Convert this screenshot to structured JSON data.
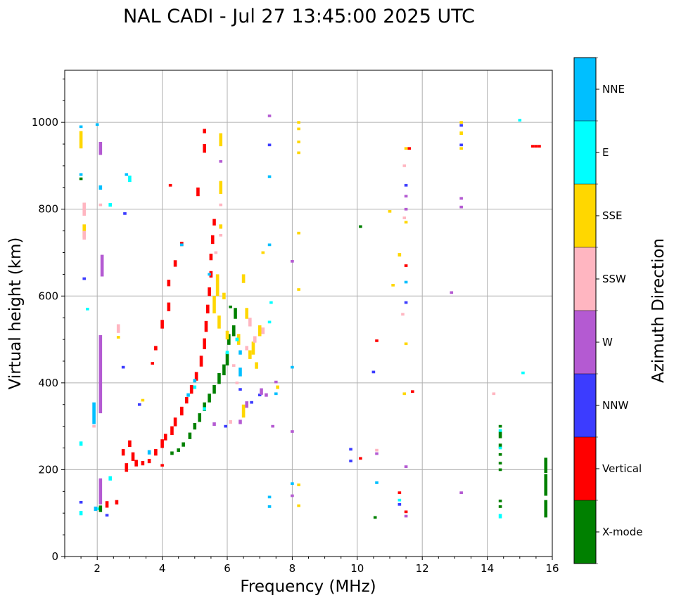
{
  "chart_data": {
    "type": "scatter",
    "title": "NAL CADI - Jul 27 13:45:00 2025 UTC",
    "xlabel": "Frequency (MHz)",
    "ylabel": "Virtual height (km)",
    "xlim": [
      1,
      16
    ],
    "ylim": [
      0,
      1120
    ],
    "xticks": [
      2,
      4,
      6,
      8,
      10,
      12,
      14,
      16
    ],
    "yticks": [
      0,
      200,
      400,
      600,
      800,
      1000
    ],
    "grid": true,
    "colorbar": {
      "label": "Azimuth Direction",
      "categories": [
        "X-mode",
        "Vertical",
        "NNW",
        "W",
        "SSW",
        "SSE",
        "E",
        "NNE"
      ],
      "colors": [
        "#008000",
        "#ff0000",
        "#3c3cff",
        "#b45ad2",
        "#ffb6c1",
        "#ffd700",
        "#00ffff",
        "#00bfff"
      ]
    },
    "points_format": "[frequency_MHz, height_km, category_index, height_span_km]",
    "points": [
      [
        3.1,
        230,
        1,
        20
      ],
      [
        3.2,
        215,
        1,
        15
      ],
      [
        3.4,
        215,
        1,
        10
      ],
      [
        3.6,
        220,
        1,
        10
      ],
      [
        3.8,
        240,
        1,
        15
      ],
      [
        4.0,
        260,
        1,
        20
      ],
      [
        4.1,
        275,
        1,
        15
      ],
      [
        4.3,
        290,
        1,
        20
      ],
      [
        4.4,
        310,
        1,
        20
      ],
      [
        4.6,
        335,
        1,
        20
      ],
      [
        4.75,
        360,
        1,
        15
      ],
      [
        4.9,
        385,
        1,
        20
      ],
      [
        5.05,
        415,
        1,
        20
      ],
      [
        5.2,
        450,
        1,
        25
      ],
      [
        5.3,
        490,
        1,
        25
      ],
      [
        5.35,
        530,
        1,
        25
      ],
      [
        5.4,
        570,
        1,
        20
      ],
      [
        5.45,
        610,
        1,
        20
      ],
      [
        5.5,
        650,
        1,
        15
      ],
      [
        5.5,
        690,
        1,
        15
      ],
      [
        5.55,
        730,
        1,
        20
      ],
      [
        5.6,
        770,
        1,
        15
      ],
      [
        5.3,
        940,
        1,
        20
      ],
      [
        5.3,
        980,
        1,
        10
      ],
      [
        5.1,
        840,
        1,
        20
      ],
      [
        4.6,
        720,
        1,
        10
      ],
      [
        4.4,
        675,
        1,
        15
      ],
      [
        4.2,
        630,
        1,
        15
      ],
      [
        4.2,
        575,
        1,
        20
      ],
      [
        4.0,
        535,
        1,
        20
      ],
      [
        3.8,
        480,
        1,
        10
      ],
      [
        3.7,
        445,
        1,
        6
      ],
      [
        4.25,
        855,
        1,
        6
      ],
      [
        2.8,
        240,
        1,
        15
      ],
      [
        2.9,
        205,
        1,
        20
      ],
      [
        3.0,
        260,
        1,
        15
      ],
      [
        2.3,
        120,
        1,
        15
      ],
      [
        2.6,
        125,
        1,
        10
      ],
      [
        4.0,
        210,
        1,
        6
      ],
      [
        10.1,
        226,
        1,
        6
      ],
      [
        10.6,
        497,
        1,
        6
      ],
      [
        11.6,
        940,
        1,
        6
      ],
      [
        11.3,
        147,
        1,
        6
      ],
      [
        11.5,
        103,
        1,
        6
      ],
      [
        11.5,
        670,
        1,
        6
      ],
      [
        11.7,
        380,
        1,
        6
      ],
      [
        15.4,
        945,
        1,
        6
      ],
      [
        15.5,
        945,
        1,
        6
      ],
      [
        15.6,
        945,
        1,
        6
      ],
      [
        4.3,
        238,
        0,
        8
      ],
      [
        4.5,
        245,
        0,
        8
      ],
      [
        4.65,
        258,
        0,
        10
      ],
      [
        4.85,
        278,
        0,
        15
      ],
      [
        5.0,
        300,
        0,
        15
      ],
      [
        5.15,
        320,
        0,
        20
      ],
      [
        5.3,
        345,
        0,
        20
      ],
      [
        5.45,
        365,
        0,
        20
      ],
      [
        5.6,
        385,
        0,
        20
      ],
      [
        5.75,
        410,
        0,
        25
      ],
      [
        5.9,
        430,
        0,
        25
      ],
      [
        6.0,
        455,
        0,
        30
      ],
      [
        6.05,
        500,
        0,
        25
      ],
      [
        6.2,
        520,
        0,
        25
      ],
      [
        6.25,
        560,
        0,
        25
      ],
      [
        6.1,
        575,
        0,
        6
      ],
      [
        14.4,
        300,
        0,
        6
      ],
      [
        14.4,
        280,
        0,
        15
      ],
      [
        14.4,
        255,
        0,
        10
      ],
      [
        14.4,
        235,
        0,
        6
      ],
      [
        14.4,
        215,
        0,
        6
      ],
      [
        14.4,
        200,
        0,
        6
      ],
      [
        14.4,
        128,
        0,
        6
      ],
      [
        14.4,
        115,
        0,
        6
      ],
      [
        15.8,
        210,
        0,
        35
      ],
      [
        15.8,
        165,
        0,
        50
      ],
      [
        15.8,
        110,
        0,
        40
      ],
      [
        10.1,
        760,
        0,
        6
      ],
      [
        10.55,
        90,
        0,
        6
      ],
      [
        1.5,
        870,
        0,
        6
      ],
      [
        2.1,
        110,
        0,
        15
      ],
      [
        5.7,
        625,
        5,
        50
      ],
      [
        5.6,
        580,
        5,
        40
      ],
      [
        5.75,
        540,
        5,
        30
      ],
      [
        5.9,
        600,
        5,
        15
      ],
      [
        6.0,
        510,
        5,
        20
      ],
      [
        6.35,
        500,
        5,
        25
      ],
      [
        6.5,
        640,
        5,
        20
      ],
      [
        6.6,
        560,
        5,
        25
      ],
      [
        6.8,
        480,
        5,
        30
      ],
      [
        7.0,
        520,
        5,
        25
      ],
      [
        6.5,
        335,
        5,
        30
      ],
      [
        6.7,
        465,
        5,
        20
      ],
      [
        6.9,
        440,
        5,
        15
      ],
      [
        5.8,
        960,
        5,
        30
      ],
      [
        5.8,
        850,
        5,
        30
      ],
      [
        5.8,
        760,
        5,
        10
      ],
      [
        8.2,
        1000,
        5,
        6
      ],
      [
        8.2,
        985,
        5,
        6
      ],
      [
        8.2,
        955,
        5,
        6
      ],
      [
        8.2,
        930,
        5,
        6
      ],
      [
        8.2,
        745,
        5,
        6
      ],
      [
        8.2,
        615,
        5,
        6
      ],
      [
        8.2,
        165,
        5,
        6
      ],
      [
        8.2,
        117,
        5,
        6
      ],
      [
        11.3,
        695,
        5,
        8
      ],
      [
        11.5,
        940,
        5,
        6
      ],
      [
        11.5,
        770,
        5,
        6
      ],
      [
        13.2,
        1000,
        5,
        6
      ],
      [
        13.2,
        975,
        5,
        8
      ],
      [
        13.2,
        940,
        5,
        6
      ],
      [
        1.5,
        960,
        5,
        40
      ],
      [
        1.6,
        750,
        5,
        30
      ],
      [
        11.1,
        625,
        5,
        6
      ],
      [
        11.5,
        490,
        5,
        6
      ],
      [
        11.45,
        375,
        5,
        6
      ],
      [
        7.55,
        390,
        5,
        8
      ],
      [
        3.4,
        360,
        5,
        6
      ],
      [
        2.65,
        505,
        5,
        6
      ],
      [
        11.0,
        795,
        5,
        6
      ],
      [
        7.1,
        700,
        5,
        6
      ],
      [
        1.5,
        100,
        6,
        10
      ],
      [
        2.0,
        110,
        6,
        6
      ],
      [
        2.4,
        180,
        6,
        10
      ],
      [
        3.0,
        870,
        6,
        15
      ],
      [
        2.4,
        810,
        6,
        8
      ],
      [
        5.0,
        390,
        6,
        8
      ],
      [
        5.3,
        340,
        6,
        8
      ],
      [
        7.3,
        540,
        6,
        6
      ],
      [
        7.35,
        585,
        6,
        6
      ],
      [
        14.4,
        93,
        6,
        10
      ],
      [
        14.4,
        250,
        6,
        6
      ],
      [
        14.4,
        290,
        6,
        6
      ],
      [
        15.0,
        1005,
        6,
        6
      ],
      [
        15.1,
        423,
        6,
        6
      ],
      [
        11.3,
        130,
        6,
        6
      ],
      [
        1.5,
        260,
        6,
        10
      ],
      [
        1.7,
        570,
        6,
        6
      ],
      [
        6.3,
        500,
        6,
        8
      ],
      [
        6.0,
        470,
        6,
        8
      ],
      [
        1.5,
        990,
        7,
        6
      ],
      [
        1.5,
        880,
        7,
        6
      ],
      [
        2.0,
        995,
        7,
        6
      ],
      [
        2.1,
        850,
        7,
        10
      ],
      [
        1.9,
        330,
        7,
        50
      ],
      [
        2.9,
        880,
        7,
        6
      ],
      [
        4.8,
        372,
        7,
        8
      ],
      [
        5.0,
        405,
        7,
        8
      ],
      [
        6.4,
        425,
        7,
        20
      ],
      [
        6.4,
        470,
        7,
        10
      ],
      [
        7.3,
        875,
        7,
        6
      ],
      [
        7.3,
        718,
        7,
        6
      ],
      [
        8.0,
        436,
        7,
        6
      ],
      [
        8.0,
        168,
        7,
        6
      ],
      [
        10.6,
        170,
        7,
        6
      ],
      [
        11.5,
        632,
        7,
        6
      ],
      [
        7.3,
        115,
        7,
        6
      ],
      [
        7.3,
        137,
        7,
        6
      ],
      [
        1.95,
        110,
        7,
        10
      ],
      [
        4.6,
        718,
        7,
        6
      ],
      [
        5.45,
        650,
        7,
        6
      ],
      [
        3.6,
        240,
        7,
        10
      ],
      [
        7.5,
        375,
        7,
        6
      ],
      [
        2.3,
        95,
        2,
        6
      ],
      [
        1.5,
        125,
        2,
        6
      ],
      [
        6.4,
        385,
        2,
        6
      ],
      [
        7.0,
        372,
        2,
        6
      ],
      [
        6.75,
        355,
        2,
        6
      ],
      [
        9.8,
        247,
        2,
        6
      ],
      [
        9.8,
        220,
        2,
        6
      ],
      [
        10.5,
        425,
        2,
        6
      ],
      [
        11.5,
        855,
        2,
        6
      ],
      [
        11.5,
        585,
        2,
        6
      ],
      [
        13.2,
        993,
        2,
        6
      ],
      [
        13.2,
        948,
        2,
        6
      ],
      [
        7.3,
        948,
        2,
        6
      ],
      [
        11.3,
        120,
        2,
        6
      ],
      [
        1.6,
        640,
        2,
        6
      ],
      [
        3.3,
        350,
        2,
        6
      ],
      [
        2.8,
        436,
        2,
        6
      ],
      [
        2.85,
        790,
        2,
        6
      ],
      [
        5.95,
        300,
        2,
        6
      ],
      [
        2.1,
        420,
        3,
        180
      ],
      [
        2.15,
        670,
        3,
        50
      ],
      [
        2.1,
        940,
        3,
        30
      ],
      [
        7.05,
        380,
        3,
        15
      ],
      [
        7.5,
        402,
        3,
        6
      ],
      [
        7.2,
        372,
        3,
        8
      ],
      [
        6.4,
        310,
        3,
        10
      ],
      [
        6.6,
        350,
        3,
        15
      ],
      [
        8.0,
        680,
        3,
        6
      ],
      [
        8.0,
        288,
        3,
        6
      ],
      [
        8.0,
        140,
        3,
        6
      ],
      [
        11.5,
        830,
        3,
        6
      ],
      [
        11.5,
        800,
        3,
        6
      ],
      [
        13.2,
        825,
        3,
        6
      ],
      [
        13.2,
        805,
        3,
        6
      ],
      [
        12.9,
        608,
        3,
        6
      ],
      [
        13.2,
        147,
        3,
        6
      ],
      [
        10.6,
        237,
        3,
        6
      ],
      [
        11.5,
        207,
        3,
        6
      ],
      [
        11.5,
        93,
        3,
        6
      ],
      [
        7.3,
        1015,
        3,
        6
      ],
      [
        7.4,
        300,
        3,
        6
      ],
      [
        5.8,
        910,
        3,
        6
      ],
      [
        2.1,
        150,
        3,
        60
      ],
      [
        5.6,
        305,
        3,
        8
      ],
      [
        6.7,
        540,
        4,
        20
      ],
      [
        6.85,
        500,
        4,
        15
      ],
      [
        7.1,
        520,
        4,
        15
      ],
      [
        6.2,
        440,
        4,
        6
      ],
      [
        1.6,
        800,
        4,
        30
      ],
      [
        1.6,
        740,
        4,
        20
      ],
      [
        2.1,
        810,
        4,
        6
      ],
      [
        11.45,
        900,
        4,
        6
      ],
      [
        11.45,
        780,
        4,
        6
      ],
      [
        14.2,
        375,
        4,
        6
      ],
      [
        10.6,
        245,
        4,
        6
      ],
      [
        11.4,
        558,
        4,
        6
      ],
      [
        2.65,
        525,
        4,
        20
      ],
      [
        6.1,
        310,
        4,
        8
      ],
      [
        6.3,
        400,
        4,
        6
      ],
      [
        5.8,
        810,
        4,
        6
      ],
      [
        6.6,
        480,
        4,
        10
      ],
      [
        1.9,
        300,
        4,
        6
      ],
      [
        5.65,
        700,
        4,
        6
      ],
      [
        5.8,
        740,
        4,
        6
      ]
    ]
  }
}
